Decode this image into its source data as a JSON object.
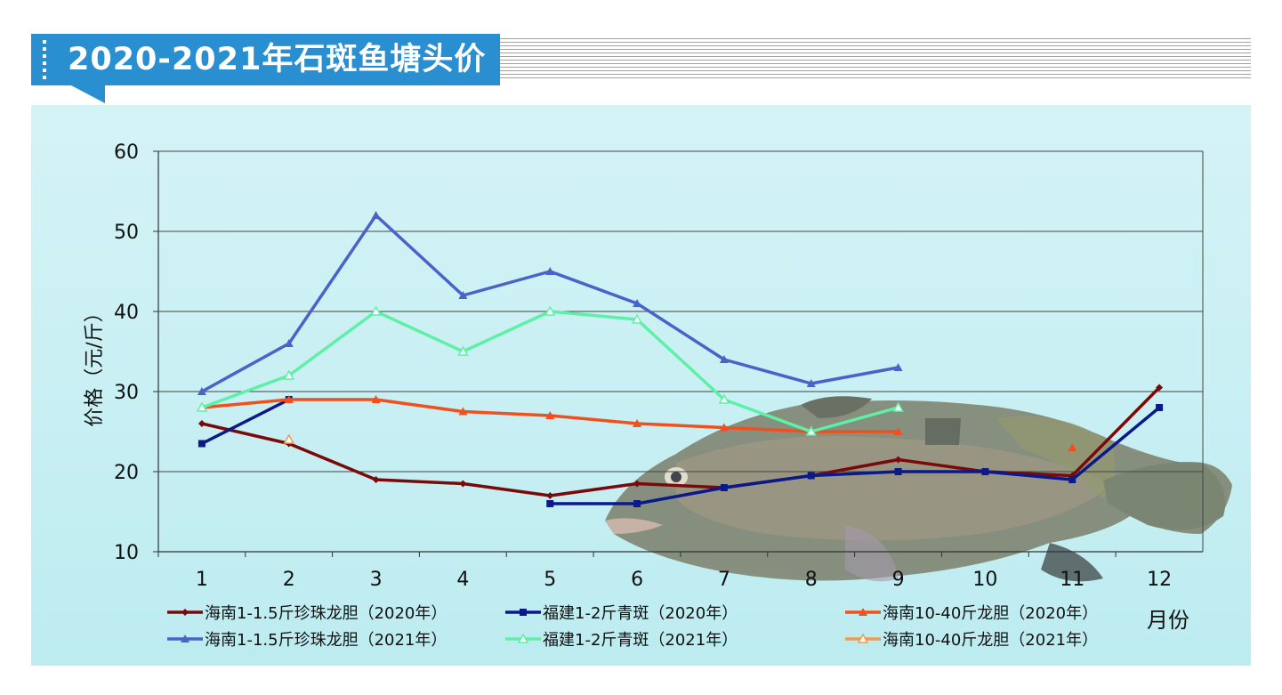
{
  "title": "2020-2021年石斑鱼塘头价",
  "chart_data": {
    "type": "line",
    "ylabel": "价格（元/斤）",
    "xlabel": "月份",
    "x": [
      1,
      2,
      3,
      4,
      5,
      6,
      7,
      8,
      9,
      10,
      11,
      12
    ],
    "ylim": [
      10,
      60
    ],
    "yticks": [
      10,
      20,
      30,
      40,
      50,
      60
    ],
    "grid": true,
    "legend_position": "bottom",
    "series": [
      {
        "name": "海南1-1.5斤珍珠龙胆（2020年）",
        "color": "#7a0a0a",
        "marker": "diamond",
        "values": [
          26,
          23.5,
          19,
          18.5,
          17,
          18.5,
          18,
          19.5,
          21.5,
          20,
          19.5,
          30.5
        ]
      },
      {
        "name": "福建1-2斤青斑（2020年）",
        "color": "#0a1a8a",
        "marker": "square",
        "values": [
          23.5,
          29,
          null,
          null,
          16,
          16,
          18,
          19.5,
          20,
          20,
          19,
          28
        ]
      },
      {
        "name": "海南10-40斤龙胆（2020年）",
        "color": "#f0501e",
        "marker": "triangle",
        "values": [
          28,
          29,
          29,
          27.5,
          27,
          26,
          25.5,
          25,
          25,
          null,
          23,
          null
        ]
      },
      {
        "name": "海南1-1.5斤珍珠龙胆（2021年）",
        "color": "#4b62c8",
        "marker": "triangle",
        "values": [
          30,
          36,
          52,
          42,
          45,
          41,
          34,
          31,
          33,
          null,
          null,
          null
        ]
      },
      {
        "name": "福建1-2斤青斑（2021年）",
        "color": "#5ff0a8",
        "marker": "triangle-open",
        "values": [
          28,
          32,
          40,
          35,
          40,
          39,
          29,
          25,
          28,
          null,
          null,
          null
        ]
      },
      {
        "name": "海南10-40斤龙胆（2021年）",
        "color": "#f59a4a",
        "marker": "triangle-open",
        "values": [
          null,
          24,
          null,
          null,
          null,
          null,
          null,
          null,
          null,
          null,
          null,
          null
        ]
      }
    ]
  }
}
